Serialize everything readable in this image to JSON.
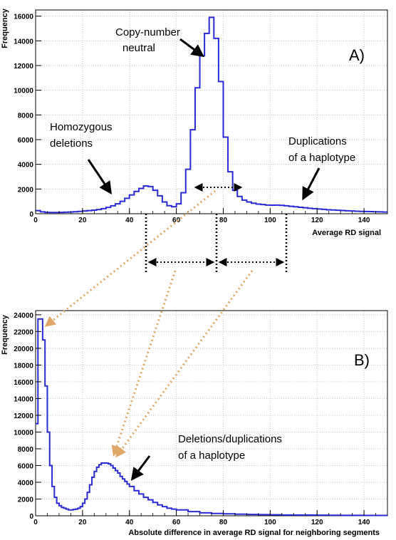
{
  "chart_data": [
    {
      "type": "histogram",
      "panel_label": "A)",
      "xlabel": "Average RD signal",
      "ylabel": "Frequency",
      "xlim": [
        0,
        150
      ],
      "ylim": [
        0,
        16500
      ],
      "grid": true,
      "color": "#2b2bd6",
      "xticks": [
        "0",
        "20",
        "40",
        "60",
        "80",
        "100",
        "120",
        "140"
      ],
      "yticks": [
        "0",
        "2000",
        "4000",
        "6000",
        "8000",
        "10000",
        "12000",
        "14000",
        "16000"
      ],
      "x": [
        0,
        2,
        4,
        6,
        8,
        10,
        12,
        14,
        16,
        18,
        20,
        22,
        24,
        26,
        28,
        30,
        32,
        34,
        36,
        38,
        40,
        42,
        44,
        46,
        48,
        50,
        52,
        54,
        56,
        58,
        60,
        62,
        64,
        66,
        68,
        70,
        72,
        74,
        76,
        78,
        80,
        82,
        84,
        86,
        88,
        90,
        92,
        94,
        96,
        98,
        100,
        102,
        104,
        106,
        108,
        110,
        112,
        114,
        116,
        118,
        120,
        122,
        124,
        126,
        128,
        130,
        132,
        134,
        136,
        138,
        140,
        142,
        144,
        146,
        148
      ],
      "values": [
        250,
        150,
        110,
        100,
        100,
        110,
        120,
        140,
        160,
        190,
        220,
        250,
        290,
        340,
        410,
        510,
        640,
        800,
        1000,
        1250,
        1520,
        1800,
        2050,
        2250,
        2200,
        1900,
        1450,
        950,
        650,
        560,
        800,
        1700,
        3600,
        6800,
        10200,
        12800,
        14600,
        15900,
        14200,
        10700,
        6200,
        3400,
        1900,
        1400,
        1100,
        950,
        850,
        780,
        740,
        700,
        690,
        700,
        680,
        640,
        600,
        560,
        520,
        480,
        440,
        410,
        380,
        350,
        320,
        300,
        280,
        260,
        240,
        220,
        200,
        190,
        180,
        170,
        160,
        150,
        140
      ]
    },
    {
      "type": "histogram",
      "panel_label": "B)",
      "xlabel": "Absolute difference in average RD signal for neighboring segments",
      "ylabel": "Frequency",
      "xlim": [
        0,
        150
      ],
      "ylim": [
        0,
        24500
      ],
      "grid": true,
      "color": "#2b2bd6",
      "xticks": [
        "0",
        "20",
        "40",
        "60",
        "80",
        "100",
        "120",
        "140"
      ],
      "yticks": [
        "0",
        "2000",
        "4000",
        "6000",
        "8000",
        "10000",
        "12000",
        "14000",
        "16000",
        "18000",
        "20000",
        "22000",
        "24000"
      ],
      "x": [
        0,
        1,
        2,
        3,
        4,
        5,
        6,
        7,
        8,
        9,
        10,
        11,
        12,
        13,
        14,
        15,
        16,
        17,
        18,
        19,
        20,
        21,
        22,
        23,
        24,
        25,
        26,
        27,
        28,
        29,
        30,
        31,
        32,
        33,
        34,
        35,
        36,
        37,
        38,
        39,
        40,
        42,
        44,
        46,
        48,
        50,
        52,
        54,
        56,
        58,
        60,
        65,
        70,
        75,
        80,
        85,
        90,
        95,
        100,
        105,
        110,
        115,
        120,
        125,
        130,
        135,
        140,
        145
      ],
      "values": [
        11000,
        23500,
        23500,
        21000,
        15500,
        10000,
        6000,
        3500,
        2200,
        1500,
        1200,
        1000,
        900,
        800,
        700,
        700,
        750,
        800,
        900,
        1100,
        1500,
        2000,
        2800,
        3700,
        4600,
        5300,
        5800,
        6100,
        6300,
        6300,
        6300,
        6200,
        6000,
        5700,
        5400,
        5100,
        4700,
        4400,
        4100,
        3800,
        3500,
        3000,
        2600,
        2200,
        1900,
        1600,
        1300,
        1100,
        900,
        800,
        700,
        500,
        350,
        280,
        230,
        190,
        160,
        140,
        120,
        100,
        90,
        80,
        70,
        60,
        55,
        50,
        45,
        40
      ]
    }
  ],
  "annotations": {
    "copy_number_line1": "Copy-number",
    "copy_number_line2": "neutral",
    "homozygous_line1": "Homozygous",
    "homozygous_line2": "deletions",
    "duplications_line1": "Duplications",
    "duplications_line2": "of a haplotype",
    "deldup_line1": "Deletions/duplications",
    "deldup_line2": "of a haplotype"
  },
  "colors": {
    "histogram": "#2b2bd6",
    "arrow_guides": "#e0a868",
    "annotation_arrows": "#000000",
    "grid": "#c8c8c8"
  }
}
